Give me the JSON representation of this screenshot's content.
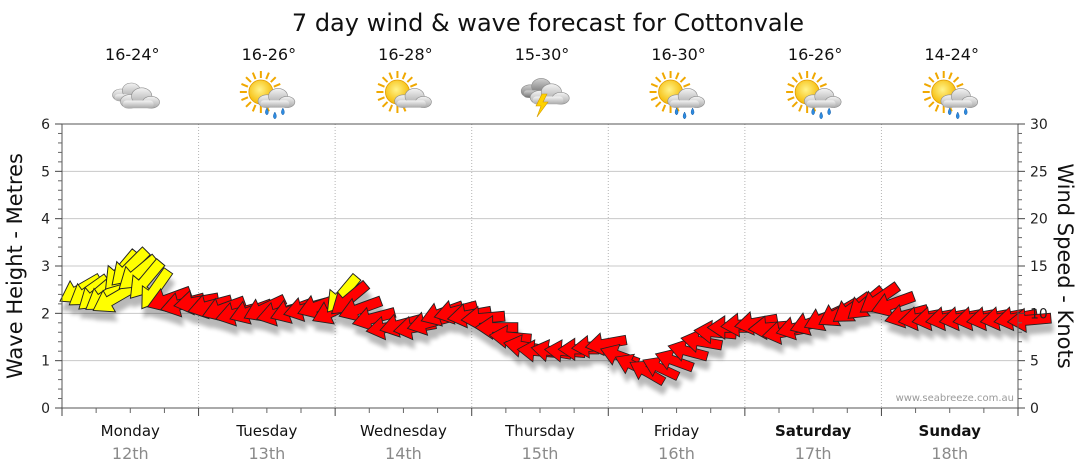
{
  "chart_data": {
    "type": "line",
    "title": "7 day wind & wave forecast for Cottonvale",
    "ylabel_left": "Wave Height - Metres",
    "ylabel_right": "Wind Speed - Knots",
    "ylim_left": [
      0,
      6
    ],
    "ylim_right": [
      0,
      30
    ],
    "left_ticks": [
      "0",
      "1",
      "2",
      "3",
      "4",
      "5",
      "6"
    ],
    "right_ticks": [
      "0",
      "5",
      "10",
      "15",
      "20",
      "25",
      "30"
    ],
    "grid": true,
    "watermark": "www.seabreeze.com.au",
    "days": [
      {
        "name": "Monday",
        "date": "12th",
        "bold": false,
        "temp": "16-24°",
        "icon": "cloudy-icon"
      },
      {
        "name": "Tuesday",
        "date": "13th",
        "bold": false,
        "temp": "16-26°",
        "icon": "sun-cloud-rain-icon"
      },
      {
        "name": "Wednesday",
        "date": "14th",
        "bold": false,
        "temp": "16-28°",
        "icon": "partly-cloudy-icon"
      },
      {
        "name": "Thursday",
        "date": "15th",
        "bold": false,
        "temp": "15-30°",
        "icon": "storm-icon"
      },
      {
        "name": "Friday",
        "date": "16th",
        "bold": false,
        "temp": "16-30°",
        "icon": "sun-cloud-rain-icon"
      },
      {
        "name": "Saturday",
        "date": "17th",
        "bold": true,
        "temp": "16-26°",
        "icon": "sun-cloud-rain-icon"
      },
      {
        "name": "Sunday",
        "date": "18th",
        "bold": true,
        "temp": "14-24°",
        "icon": "sun-cloud-rain-icon"
      }
    ],
    "wind_series_unit": "knots",
    "wind": [
      {
        "day": 0.0,
        "knots": 12.5,
        "dir": 60,
        "color": "#ffff00"
      },
      {
        "day": 0.06,
        "knots": 12.3,
        "dir": 55,
        "color": "#ffff00"
      },
      {
        "day": 0.12,
        "knots": 12.0,
        "dir": 50,
        "color": "#ffff00"
      },
      {
        "day": 0.18,
        "knots": 11.8,
        "dir": 55,
        "color": "#ffff00"
      },
      {
        "day": 0.24,
        "knots": 11.5,
        "dir": 60,
        "color": "#ffff00"
      },
      {
        "day": 0.3,
        "knots": 14.5,
        "dir": 40,
        "color": "#ffff00"
      },
      {
        "day": 0.36,
        "knots": 14.8,
        "dir": 45,
        "color": "#ffff00"
      },
      {
        "day": 0.42,
        "knots": 14.2,
        "dir": 50,
        "color": "#ffff00"
      },
      {
        "day": 0.48,
        "knots": 13.5,
        "dir": 40,
        "color": "#ffff00"
      },
      {
        "day": 0.55,
        "knots": 12.5,
        "dir": 35,
        "color": "#ffff00"
      },
      {
        "day": 0.65,
        "knots": 11.5,
        "dir": 70,
        "color": "#ff0000"
      },
      {
        "day": 0.75,
        "knots": 11.0,
        "dir": 75,
        "color": "#ff0000"
      },
      {
        "day": 0.85,
        "knots": 11.2,
        "dir": 80,
        "color": "#ff0000"
      },
      {
        "day": 0.95,
        "knots": 10.8,
        "dir": 75,
        "color": "#ff0000"
      },
      {
        "day": 1.05,
        "knots": 10.5,
        "dir": 70,
        "color": "#ff0000"
      },
      {
        "day": 1.15,
        "knots": 10.0,
        "dir": 75,
        "color": "#ff0000"
      },
      {
        "day": 1.25,
        "knots": 10.2,
        "dir": 70,
        "color": "#ff0000"
      },
      {
        "day": 1.35,
        "knots": 10.5,
        "dir": 65,
        "color": "#ff0000"
      },
      {
        "day": 1.45,
        "knots": 10.0,
        "dir": 75,
        "color": "#ff0000"
      },
      {
        "day": 1.55,
        "knots": 10.3,
        "dir": 70,
        "color": "#ff0000"
      },
      {
        "day": 1.65,
        "knots": 10.5,
        "dir": 75,
        "color": "#ff0000"
      },
      {
        "day": 1.75,
        "knots": 10.8,
        "dir": 70,
        "color": "#ff0000"
      },
      {
        "day": 1.85,
        "knots": 10.2,
        "dir": 65,
        "color": "#ff0000"
      },
      {
        "day": 1.92,
        "knots": 12.0,
        "dir": 40,
        "color": "#ffff00"
      },
      {
        "day": 1.97,
        "knots": 11.5,
        "dir": 50,
        "color": "#ff0000"
      },
      {
        "day": 2.05,
        "knots": 10.5,
        "dir": 70,
        "color": "#ff0000"
      },
      {
        "day": 2.15,
        "knots": 9.5,
        "dir": 75,
        "color": "#ff0000"
      },
      {
        "day": 2.25,
        "knots": 8.5,
        "dir": 80,
        "color": "#ff0000"
      },
      {
        "day": 2.35,
        "knots": 8.8,
        "dir": 75,
        "color": "#ff0000"
      },
      {
        "day": 2.45,
        "knots": 8.5,
        "dir": 80,
        "color": "#ff0000"
      },
      {
        "day": 2.55,
        "knots": 9.0,
        "dir": 75,
        "color": "#ff0000"
      },
      {
        "day": 2.65,
        "knots": 10.0,
        "dir": 70,
        "color": "#ff0000"
      },
      {
        "day": 2.75,
        "knots": 10.2,
        "dir": 75,
        "color": "#ff0000"
      },
      {
        "day": 2.85,
        "knots": 9.8,
        "dir": 80,
        "color": "#ff0000"
      },
      {
        "day": 2.95,
        "knots": 9.5,
        "dir": 85,
        "color": "#ff0000"
      },
      {
        "day": 3.05,
        "knots": 8.5,
        "dir": 90,
        "color": "#ff0000"
      },
      {
        "day": 3.15,
        "knots": 7.5,
        "dir": 95,
        "color": "#ff0000"
      },
      {
        "day": 3.25,
        "knots": 6.5,
        "dir": 100,
        "color": "#ff0000"
      },
      {
        "day": 3.35,
        "knots": 6.0,
        "dir": 95,
        "color": "#ff0000"
      },
      {
        "day": 3.45,
        "knots": 6.0,
        "dir": 100,
        "color": "#ff0000"
      },
      {
        "day": 3.55,
        "knots": 6.0,
        "dir": 95,
        "color": "#ff0000"
      },
      {
        "day": 3.65,
        "knots": 6.2,
        "dir": 90,
        "color": "#ff0000"
      },
      {
        "day": 3.75,
        "knots": 6.5,
        "dir": 85,
        "color": "#ff0000"
      },
      {
        "day": 3.85,
        "knots": 6.8,
        "dir": 80,
        "color": "#ff0000"
      },
      {
        "day": 3.95,
        "knots": 5.5,
        "dir": 110,
        "color": "#ff0000"
      },
      {
        "day": 4.05,
        "knots": 4.5,
        "dir": 115,
        "color": "#ff0000"
      },
      {
        "day": 4.15,
        "knots": 3.8,
        "dir": 120,
        "color": "#ff0000"
      },
      {
        "day": 4.25,
        "knots": 4.2,
        "dir": 115,
        "color": "#ff0000"
      },
      {
        "day": 4.35,
        "knots": 5.0,
        "dir": 110,
        "color": "#ff0000"
      },
      {
        "day": 4.45,
        "knots": 6.0,
        "dir": 105,
        "color": "#ff0000"
      },
      {
        "day": 4.55,
        "knots": 7.0,
        "dir": 100,
        "color": "#ff0000"
      },
      {
        "day": 4.65,
        "knots": 8.0,
        "dir": 95,
        "color": "#ff0000"
      },
      {
        "day": 4.75,
        "knots": 8.5,
        "dir": 90,
        "color": "#ff0000"
      },
      {
        "day": 4.85,
        "knots": 8.8,
        "dir": 85,
        "color": "#ff0000"
      },
      {
        "day": 4.95,
        "knots": 9.0,
        "dir": 80,
        "color": "#ff0000"
      },
      {
        "day": 5.05,
        "knots": 8.5,
        "dir": 85,
        "color": "#ff0000"
      },
      {
        "day": 5.15,
        "knots": 8.0,
        "dir": 80,
        "color": "#ff0000"
      },
      {
        "day": 5.25,
        "knots": 8.5,
        "dir": 75,
        "color": "#ff0000"
      },
      {
        "day": 5.35,
        "knots": 9.0,
        "dir": 70,
        "color": "#ff0000"
      },
      {
        "day": 5.45,
        "knots": 9.5,
        "dir": 65,
        "color": "#ff0000"
      },
      {
        "day": 5.55,
        "knots": 10.0,
        "dir": 60,
        "color": "#ff0000"
      },
      {
        "day": 5.65,
        "knots": 10.5,
        "dir": 55,
        "color": "#ff0000"
      },
      {
        "day": 5.75,
        "knots": 11.0,
        "dir": 50,
        "color": "#ff0000"
      },
      {
        "day": 5.85,
        "knots": 11.5,
        "dir": 55,
        "color": "#ff0000"
      },
      {
        "day": 5.95,
        "knots": 11.0,
        "dir": 70,
        "color": "#ff0000"
      },
      {
        "day": 6.05,
        "knots": 9.8,
        "dir": 75,
        "color": "#ff0000"
      },
      {
        "day": 6.15,
        "knots": 9.5,
        "dir": 80,
        "color": "#ff0000"
      },
      {
        "day": 6.25,
        "knots": 9.5,
        "dir": 80,
        "color": "#ff0000"
      },
      {
        "day": 6.35,
        "knots": 9.5,
        "dir": 80,
        "color": "#ff0000"
      },
      {
        "day": 6.45,
        "knots": 9.5,
        "dir": 80,
        "color": "#ff0000"
      },
      {
        "day": 6.55,
        "knots": 9.5,
        "dir": 80,
        "color": "#ff0000"
      },
      {
        "day": 6.65,
        "knots": 9.5,
        "dir": 80,
        "color": "#ff0000"
      },
      {
        "day": 6.75,
        "knots": 9.5,
        "dir": 80,
        "color": "#ff0000"
      },
      {
        "day": 6.85,
        "knots": 9.5,
        "dir": 80,
        "color": "#ff0000"
      },
      {
        "day": 6.95,
        "knots": 9.3,
        "dir": 85,
        "color": "#ff0000"
      }
    ]
  }
}
